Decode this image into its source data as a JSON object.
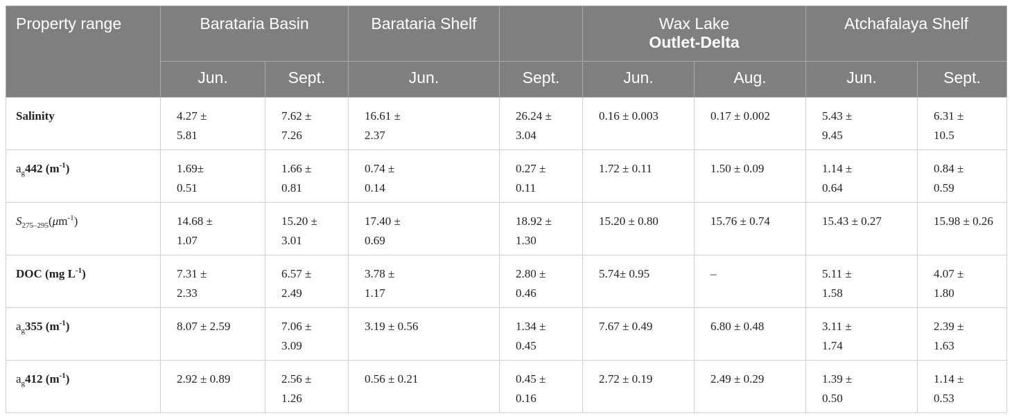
{
  "header": {
    "corner": "Property range",
    "groups": [
      {
        "label": "Barataria Basin"
      },
      {
        "label": "Barataria Shelf"
      },
      {
        "label": "Wax Lake",
        "label_bold": "Outlet-Delta"
      },
      {
        "label": "Atchafalaya Shelf"
      }
    ],
    "periods": [
      "Jun.",
      "Sept.",
      "Jun.",
      "Sept.",
      "Jun.",
      "Aug.",
      "Jun.",
      "Sept."
    ]
  },
  "table": {
    "rows": [
      {
        "label": [
          "Salinity"
        ],
        "cells": [
          [
            "4.27 ±",
            "5.81"
          ],
          [
            "7.62 ±",
            "7.26"
          ],
          [
            "16.61 ±",
            "2.37"
          ],
          [
            "26.24 ±",
            "3.04"
          ],
          [
            "0.16 ± 0.003"
          ],
          [
            "0.17 ± 0.002"
          ],
          [
            "5.43 ±",
            "9.45"
          ],
          [
            "6.31 ±",
            "10.5"
          ]
        ]
      },
      {
        "label": [
          "a",
          "g",
          "442 (m",
          "-1",
          ")"
        ],
        "cells": [
          [
            "1.69±",
            "0.51"
          ],
          [
            "1.66 ±",
            "0.81"
          ],
          [
            "0.74 ±",
            "0.14"
          ],
          [
            "0.27 ±",
            "0.11"
          ],
          [
            "1.72 ± 0.11"
          ],
          [
            "1.50 ± 0.09"
          ],
          [
            "1.14 ±",
            "0.64"
          ],
          [
            "0.84 ±",
            "0.59"
          ]
        ]
      },
      {
        "label": [
          "S",
          "275–295",
          "(",
          "μ",
          "m",
          "-1",
          ")"
        ],
        "cells": [
          [
            "14.68 ±",
            "1.07"
          ],
          [
            "15.20 ±",
            "3.01"
          ],
          [
            "17.40 ±",
            "0.69"
          ],
          [
            "18.92 ±",
            "1.30"
          ],
          [
            "15.20 ± 0.80"
          ],
          [
            "15.76 ± 0.74"
          ],
          [
            "15.43 ± 0.27"
          ],
          [
            "15.98 ± 0.26"
          ]
        ]
      },
      {
        "label": [
          "DOC (mg L",
          "-1",
          ")"
        ],
        "cells": [
          [
            "7.31 ±",
            "2.33"
          ],
          [
            "6.57 ±",
            "2.49"
          ],
          [
            "3.78 ±",
            "1.17"
          ],
          [
            "2.80 ±",
            "0.46"
          ],
          [
            "5.74± 0.95"
          ],
          [
            "–"
          ],
          [
            "5.11 ±",
            "1.58"
          ],
          [
            "4.07 ±",
            "1.80"
          ]
        ]
      },
      {
        "label": [
          "a",
          "g",
          "355 (m",
          "-1",
          ")"
        ],
        "cells": [
          [
            "8.07 ± 2.59"
          ],
          [
            "7.06 ±",
            "3.09"
          ],
          [
            "3.19 ± 0.56"
          ],
          [
            "1.34 ±",
            "0.45"
          ],
          [
            "7.67 ± 0.49"
          ],
          [
            "6.80 ± 0.48"
          ],
          [
            "3.11 ±",
            "1.74"
          ],
          [
            "2.39 ±",
            "1.63"
          ]
        ]
      },
      {
        "label": [
          "a",
          "g",
          "412 (m",
          "-1",
          ")"
        ],
        "cells": [
          [
            "2.92 ± 0.89"
          ],
          [
            "2.56 ±",
            "1.26"
          ],
          [
            "0.56 ± 0.21"
          ],
          [
            "0.45 ±",
            "0.16"
          ],
          [
            "2.72 ± 0.19"
          ],
          [
            "2.49 ± 0.29"
          ],
          [
            "1.39 ±",
            "0.50"
          ],
          [
            "1.14 ±",
            "0.53"
          ]
        ]
      }
    ]
  }
}
